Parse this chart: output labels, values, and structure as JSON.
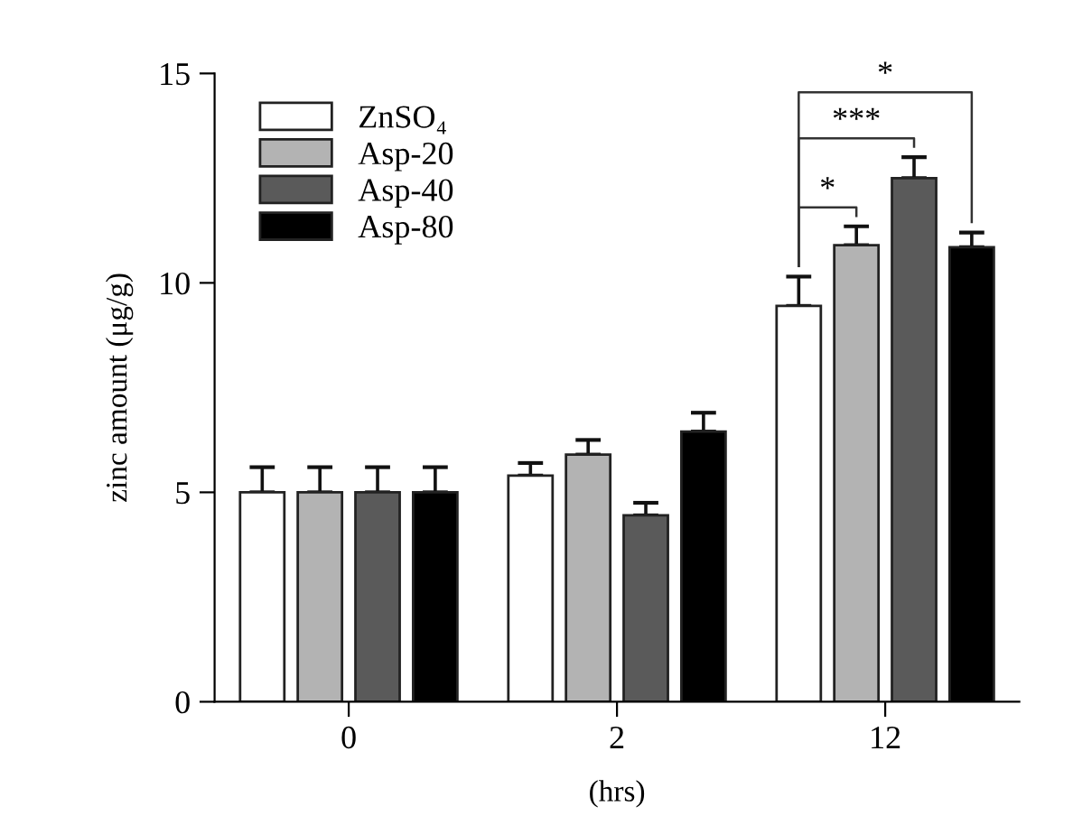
{
  "chart_data": {
    "type": "bar",
    "categories": [
      "0",
      "2",
      "12"
    ],
    "xlabel": "(hrs)",
    "ylabel": "zinc amount (μg/g)",
    "ylim": [
      0,
      15
    ],
    "yticks": [
      0,
      5,
      10,
      15
    ],
    "grid": false,
    "legend": "top left",
    "series": [
      {
        "name": "ZnSO₄",
        "color": "#ffffff",
        "values": [
          5.0,
          5.4,
          9.45
        ],
        "errors": [
          [
            5.0,
            5.6
          ],
          [
            5.4,
            5.7
          ],
          [
            9.45,
            10.15
          ]
        ]
      },
      {
        "name": "Asp-20",
        "color": "#b3b3b3",
        "values": [
          5.0,
          5.9,
          10.9
        ],
        "errors": [
          [
            5.0,
            5.6
          ],
          [
            5.9,
            6.25
          ],
          [
            10.9,
            11.35
          ]
        ]
      },
      {
        "name": "Asp-40",
        "color": "#5a5a5a",
        "values": [
          5.0,
          4.45,
          12.5
        ],
        "errors": [
          [
            5.0,
            5.6
          ],
          [
            4.45,
            4.75
          ],
          [
            12.5,
            13.0
          ]
        ]
      },
      {
        "name": "Asp-80",
        "color": "#000000",
        "values": [
          5.0,
          6.45,
          10.85
        ],
        "errors": [
          [
            5.0,
            5.6
          ],
          [
            6.45,
            6.9
          ],
          [
            10.85,
            11.2
          ]
        ]
      }
    ],
    "annotations": [
      "*",
      "***",
      "*"
    ]
  }
}
